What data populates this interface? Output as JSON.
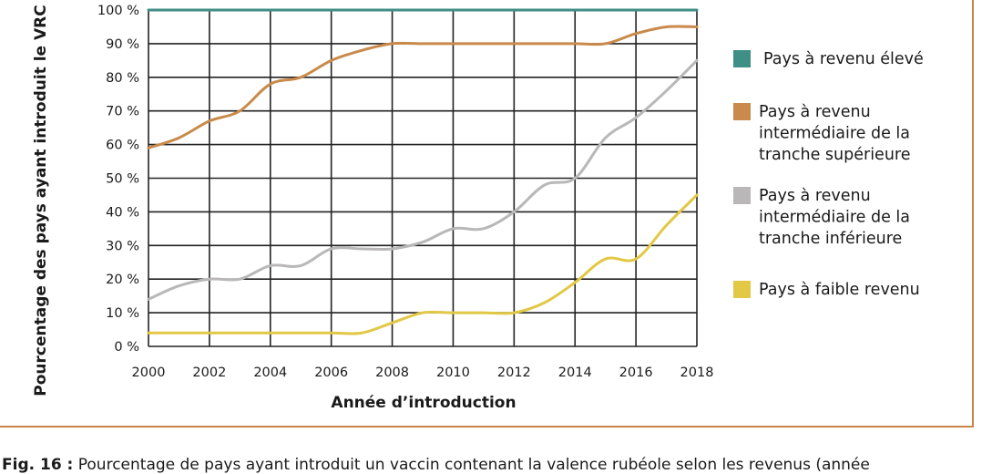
{
  "chart_data": {
    "type": "line",
    "title": "",
    "xlabel": "Année d’introduction",
    "ylabel": "Pourcentage des pays ayant introduit le VRC",
    "xlim": [
      2000,
      2018
    ],
    "ylim": [
      0,
      100
    ],
    "x_ticks": [
      "2000",
      "2002",
      "2004",
      "2006",
      "2008",
      "2010",
      "2012",
      "2014",
      "2016",
      "2018"
    ],
    "y_ticks": [
      "0 %",
      "10 %",
      "20 %",
      "30 %",
      "40 %",
      "50 %",
      "60 %",
      "70 %",
      "80 %",
      "90 %",
      "100 %"
    ],
    "grid": true,
    "legend_position": "right",
    "x": [
      2000,
      2001,
      2002,
      2003,
      2004,
      2005,
      2006,
      2007,
      2008,
      2009,
      2010,
      2011,
      2012,
      2013,
      2014,
      2015,
      2016,
      2017,
      2018
    ],
    "series": [
      {
        "name": "Pays à revenu élevé",
        "color": "#3f8f86",
        "values": [
          100,
          100,
          100,
          100,
          100,
          100,
          100,
          100,
          100,
          100,
          100,
          100,
          100,
          100,
          100,
          100,
          100,
          100,
          100
        ]
      },
      {
        "name": "Pays à revenu intermédiaire de la tranche supérieure",
        "color": "#c98a4b",
        "values": [
          59,
          62,
          67,
          70,
          78,
          80,
          85,
          88,
          90,
          90,
          90,
          90,
          90,
          90,
          90,
          90,
          93,
          95,
          95
        ]
      },
      {
        "name": "Pays à revenu intermédiaire de la tranche inférieure",
        "color": "#b9b7b8",
        "values": [
          14,
          18,
          20,
          20,
          24,
          24,
          29,
          29,
          29,
          31,
          35,
          35,
          40,
          48,
          50,
          62,
          68,
          76,
          85
        ]
      },
      {
        "name": "Pays à faible revenu",
        "color": "#e2c845",
        "values": [
          4,
          4,
          4,
          4,
          4,
          4,
          4,
          4,
          7,
          10,
          10,
          10,
          10,
          13,
          19,
          26,
          26,
          36,
          45
        ]
      }
    ]
  },
  "legend": [
    {
      "lines": [
        "Pays à revenu élevé"
      ]
    },
    {
      "lines": [
        "Pays à revenu",
        "intermédiaire de la",
        "tranche supérieure"
      ]
    },
    {
      "lines": [
        "Pays à revenu",
        "intermédiaire de la",
        "tranche inférieure"
      ]
    },
    {
      "lines": [
        "Pays à faible revenu"
      ]
    }
  ],
  "caption": {
    "label": "Fig. 16 :",
    "text": " Pourcentage de pays ayant introduit un vaccin contenant la valence rubéole selon les revenus (année"
  }
}
